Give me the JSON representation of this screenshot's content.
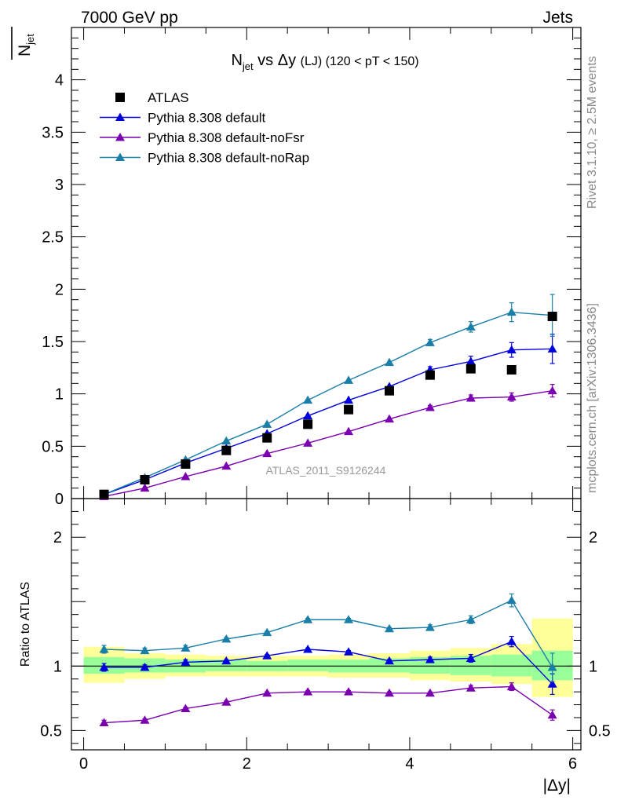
{
  "header": {
    "left": "7000 GeV pp",
    "right": "Jets"
  },
  "side_labels": {
    "rivet": "Rivet 3.1.10, ≥ 2.5M events",
    "mcplots": "mcplots.cern.ch [arXiv:1306.3436]"
  },
  "colors": {
    "data": "#000000",
    "default": "#0000dd",
    "noFsr": "#7a00b0",
    "noRap": "#1a7fa8",
    "band_inner": "#99ff99",
    "band_outer": "#ffff99"
  },
  "chart_data": [
    {
      "type": "line",
      "title_main": "N",
      "title_sub": "jet",
      "title_mid": " vs Δy ",
      "title_small": "(LJ)",
      "title_rest": " (120 < pT < 150)",
      "ylabel_main": "N",
      "ylabel_sub": "jet",
      "watermark": "ATLAS_2011_S9126244",
      "xlim": [
        -0.15,
        6.1
      ],
      "ylim": [
        0,
        4.5
      ],
      "yticks": [
        0,
        0.5,
        1,
        1.5,
        2,
        2.5,
        3,
        3.5,
        4
      ],
      "ytick_labels": [
        "0",
        "0.5",
        "1",
        "1.5",
        "2",
        "2.5",
        "3",
        "3.5",
        "4"
      ],
      "x": [
        0.25,
        0.75,
        1.25,
        1.75,
        2.25,
        2.75,
        3.25,
        3.75,
        4.25,
        4.75,
        5.25,
        5.75
      ],
      "legend_position": "top-left",
      "series": [
        {
          "name": "ATLAS",
          "key": "data",
          "marker": "square",
          "values": [
            0.04,
            0.18,
            0.33,
            0.46,
            0.58,
            0.71,
            0.85,
            1.03,
            1.18,
            1.24,
            1.23,
            1.74
          ]
        },
        {
          "name": "Pythia 8.308 default",
          "key": "default",
          "marker": "triangle",
          "values": [
            0.04,
            0.18,
            0.34,
            0.48,
            0.62,
            0.79,
            0.94,
            1.07,
            1.23,
            1.31,
            1.42,
            1.43
          ],
          "errors": [
            0,
            0,
            0,
            0,
            0,
            0,
            0,
            0,
            0.03,
            0.05,
            0.07,
            0.14
          ]
        },
        {
          "name": "Pythia 8.308 default-noFsr",
          "key": "noFsr",
          "marker": "triangle",
          "values": [
            0.02,
            0.1,
            0.21,
            0.31,
            0.43,
            0.53,
            0.64,
            0.76,
            0.87,
            0.96,
            0.97,
            1.03
          ],
          "errors": [
            0,
            0,
            0,
            0,
            0,
            0,
            0,
            0,
            0.02,
            0.03,
            0.04,
            0.06
          ]
        },
        {
          "name": "Pythia 8.308 default-noRap",
          "key": "noRap",
          "marker": "triangle",
          "values": [
            0.04,
            0.2,
            0.37,
            0.55,
            0.71,
            0.94,
            1.13,
            1.3,
            1.49,
            1.64,
            1.78,
            1.75
          ],
          "errors": [
            0,
            0,
            0,
            0,
            0,
            0,
            0,
            0,
            0.03,
            0.05,
            0.09,
            0.2
          ]
        }
      ]
    },
    {
      "type": "line",
      "ylabel": "Ratio to ATLAS",
      "xlabel": "|Δy|",
      "xlim": [
        -0.15,
        6.1
      ],
      "ylim": [
        0.35,
        2.3
      ],
      "yticks": [
        0.5,
        1,
        2
      ],
      "ytick_labels": [
        "0.5",
        "1",
        "2"
      ],
      "xticks": [
        0,
        2,
        4,
        6
      ],
      "xtick_labels": [
        "0",
        "2",
        "4",
        "6"
      ],
      "x": [
        0.25,
        0.75,
        1.25,
        1.75,
        2.25,
        2.75,
        3.25,
        3.75,
        4.25,
        4.75,
        5.25,
        5.75
      ],
      "band_inner": [
        [
          0.94,
          1.07
        ],
        [
          0.95,
          1.06
        ],
        [
          0.95,
          1.05
        ],
        [
          0.96,
          1.05
        ],
        [
          0.96,
          1.04
        ],
        [
          0.96,
          1.05
        ],
        [
          0.95,
          1.05
        ],
        [
          0.95,
          1.06
        ],
        [
          0.94,
          1.07
        ],
        [
          0.93,
          1.08
        ],
        [
          0.92,
          1.09
        ],
        [
          0.89,
          1.12
        ]
      ],
      "band_outer": [
        [
          0.87,
          1.15
        ],
        [
          0.9,
          1.1
        ],
        [
          0.92,
          1.09
        ],
        [
          0.92,
          1.08
        ],
        [
          0.92,
          1.08
        ],
        [
          0.92,
          1.08
        ],
        [
          0.91,
          1.09
        ],
        [
          0.91,
          1.1
        ],
        [
          0.89,
          1.12
        ],
        [
          0.88,
          1.14
        ],
        [
          0.86,
          1.17
        ],
        [
          0.76,
          1.37
        ]
      ],
      "series": [
        {
          "name": "Pythia 8.308 default",
          "key": "default",
          "values": [
            0.99,
            0.99,
            1.03,
            1.04,
            1.08,
            1.13,
            1.11,
            1.04,
            1.05,
            1.06,
            1.19,
            0.86
          ],
          "errors": [
            0.03,
            0.02,
            0.02,
            0.01,
            0.01,
            0.01,
            0.01,
            0.01,
            0.02,
            0.03,
            0.04,
            0.08
          ]
        },
        {
          "name": "Pythia 8.308 default-noFsr",
          "key": "noFsr",
          "values": [
            0.56,
            0.58,
            0.67,
            0.72,
            0.79,
            0.8,
            0.8,
            0.79,
            0.79,
            0.83,
            0.84,
            0.62
          ],
          "errors": [
            0.02,
            0.01,
            0.01,
            0.01,
            0.01,
            0.01,
            0.01,
            0.01,
            0.01,
            0.02,
            0.03,
            0.04
          ]
        },
        {
          "name": "Pythia 8.308 default-noRap",
          "key": "noRap",
          "values": [
            1.13,
            1.12,
            1.14,
            1.21,
            1.26,
            1.36,
            1.36,
            1.29,
            1.3,
            1.36,
            1.51,
            0.99
          ],
          "errors": [
            0.03,
            0.02,
            0.02,
            0.01,
            0.01,
            0.01,
            0.01,
            0.01,
            0.02,
            0.03,
            0.05,
            0.11
          ]
        }
      ]
    }
  ]
}
